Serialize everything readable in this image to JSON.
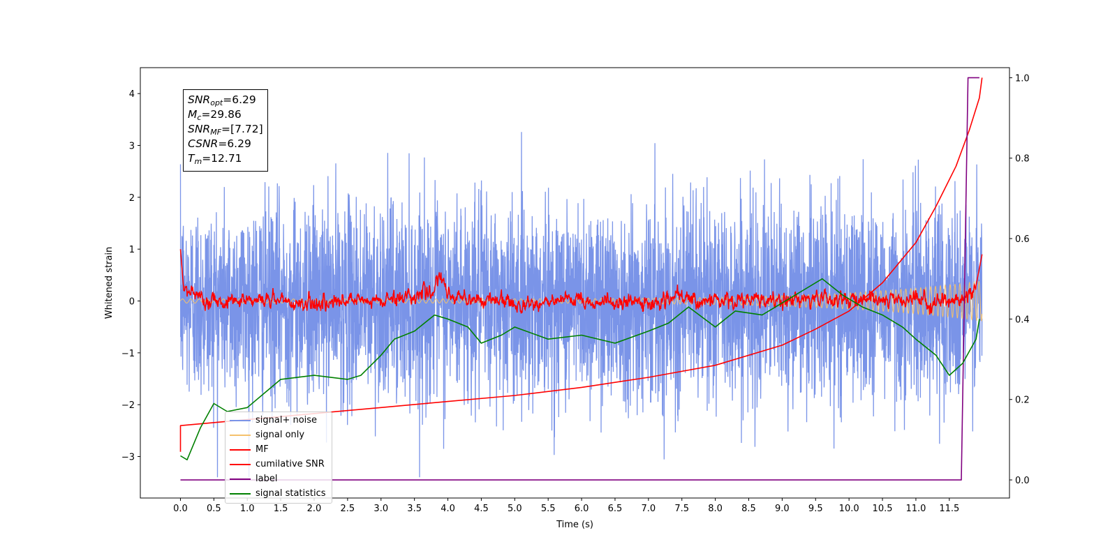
{
  "chart_data": {
    "type": "line",
    "xlabel": "Time (s)",
    "ylabel": "Whitened strain",
    "x_ticks": [
      "0.0",
      "0.5",
      "1.0",
      "1.5",
      "2.0",
      "2.5",
      "3.0",
      "3.5",
      "4.0",
      "4.5",
      "5.0",
      "5.5",
      "6.0",
      "6.5",
      "7.0",
      "7.5",
      "8.0",
      "8.5",
      "9.0",
      "9.5",
      "10.0",
      "10.5",
      "11.0",
      "11.5"
    ],
    "y_ticks": [
      "−3",
      "−2",
      "−1",
      "0",
      "1",
      "2",
      "3",
      "4"
    ],
    "y2_ticks": [
      "0.0",
      "0.2",
      "0.4",
      "0.6",
      "0.8",
      "1.0"
    ],
    "xlim": [
      -0.6,
      12.4
    ],
    "ylim": [
      -3.8,
      4.5
    ],
    "y2lim": [
      -0.045,
      1.025
    ],
    "grid": false,
    "legend_position": "lower-left",
    "annotation": {
      "lines": [
        {
          "sym": "SNR",
          "sub": "opt",
          "value": "=6.29"
        },
        {
          "sym": "M",
          "sub": "c",
          "value": "=29.86"
        },
        {
          "sym": "SNR",
          "sub": "MF",
          "value": "=[7.72]"
        },
        {
          "sym": "CSNR",
          "sub": "",
          "value": "=6.29"
        },
        {
          "sym": "T",
          "sub": "m",
          "value": "=12.71"
        }
      ]
    },
    "series": [
      {
        "name": "signal+ noise",
        "color": "#7a94e8",
        "axis": "left",
        "style": "noise band",
        "x_range": [
          0.0,
          11.99
        ],
        "y_envelope": [
          -3.4,
          3.3
        ]
      },
      {
        "name": "signal only",
        "color": "#f5c16c",
        "axis": "left",
        "style": "chirp",
        "x_range": [
          0.0,
          11.99
        ]
      },
      {
        "name": "MF",
        "color": "#ff0000",
        "axis": "left",
        "x": [
          0.0,
          0.05,
          0.5,
          1.0,
          2.0,
          3.0,
          3.8,
          3.9,
          4.0,
          5.0,
          6.0,
          7.0,
          7.4,
          8.0,
          9.0,
          9.5,
          10.0,
          11.0,
          11.7,
          11.9,
          11.99
        ],
        "y": [
          1.0,
          0.2,
          0.0,
          0.05,
          -0.05,
          0.0,
          0.2,
          0.45,
          0.1,
          -0.05,
          0.0,
          -0.05,
          0.05,
          0.0,
          0.0,
          0.05,
          0.05,
          0.0,
          0.0,
          0.3,
          0.9
        ]
      },
      {
        "name": "cumilative SNR",
        "color": "#ff0000",
        "axis": "right",
        "x": [
          0.0,
          0.0,
          1.0,
          2.0,
          3.0,
          4.0,
          5.0,
          6.0,
          7.0,
          8.0,
          9.0,
          9.5,
          10.0,
          10.5,
          11.0,
          11.3,
          11.6,
          11.8,
          11.95,
          11.99
        ],
        "y": [
          0.07,
          0.135,
          0.15,
          0.165,
          0.18,
          0.195,
          0.21,
          0.23,
          0.255,
          0.285,
          0.335,
          0.375,
          0.42,
          0.49,
          0.59,
          0.68,
          0.78,
          0.87,
          0.95,
          1.0
        ]
      },
      {
        "name": "label",
        "color": "#800080",
        "axis": "right",
        "x": [
          0.0,
          11.68,
          11.78,
          11.95
        ],
        "y": [
          0.0,
          0.0,
          1.0,
          1.0
        ]
      },
      {
        "name": "signal statistics",
        "color": "#008000",
        "axis": "right",
        "x": [
          0.0,
          0.1,
          0.3,
          0.5,
          0.7,
          1.0,
          1.5,
          2.0,
          2.5,
          2.7,
          3.0,
          3.2,
          3.5,
          3.8,
          4.0,
          4.3,
          4.5,
          4.8,
          5.0,
          5.5,
          6.0,
          6.5,
          7.0,
          7.3,
          7.6,
          8.0,
          8.3,
          8.7,
          9.0,
          9.3,
          9.6,
          9.9,
          10.2,
          10.5,
          10.8,
          11.0,
          11.3,
          11.5,
          11.7,
          11.9,
          11.95
        ],
        "y": [
          0.06,
          0.05,
          0.13,
          0.19,
          0.17,
          0.18,
          0.25,
          0.26,
          0.25,
          0.26,
          0.31,
          0.35,
          0.37,
          0.41,
          0.4,
          0.38,
          0.34,
          0.36,
          0.38,
          0.35,
          0.36,
          0.34,
          0.37,
          0.39,
          0.43,
          0.38,
          0.42,
          0.41,
          0.44,
          0.47,
          0.5,
          0.46,
          0.43,
          0.41,
          0.38,
          0.35,
          0.31,
          0.26,
          0.29,
          0.35,
          0.4
        ]
      }
    ]
  }
}
